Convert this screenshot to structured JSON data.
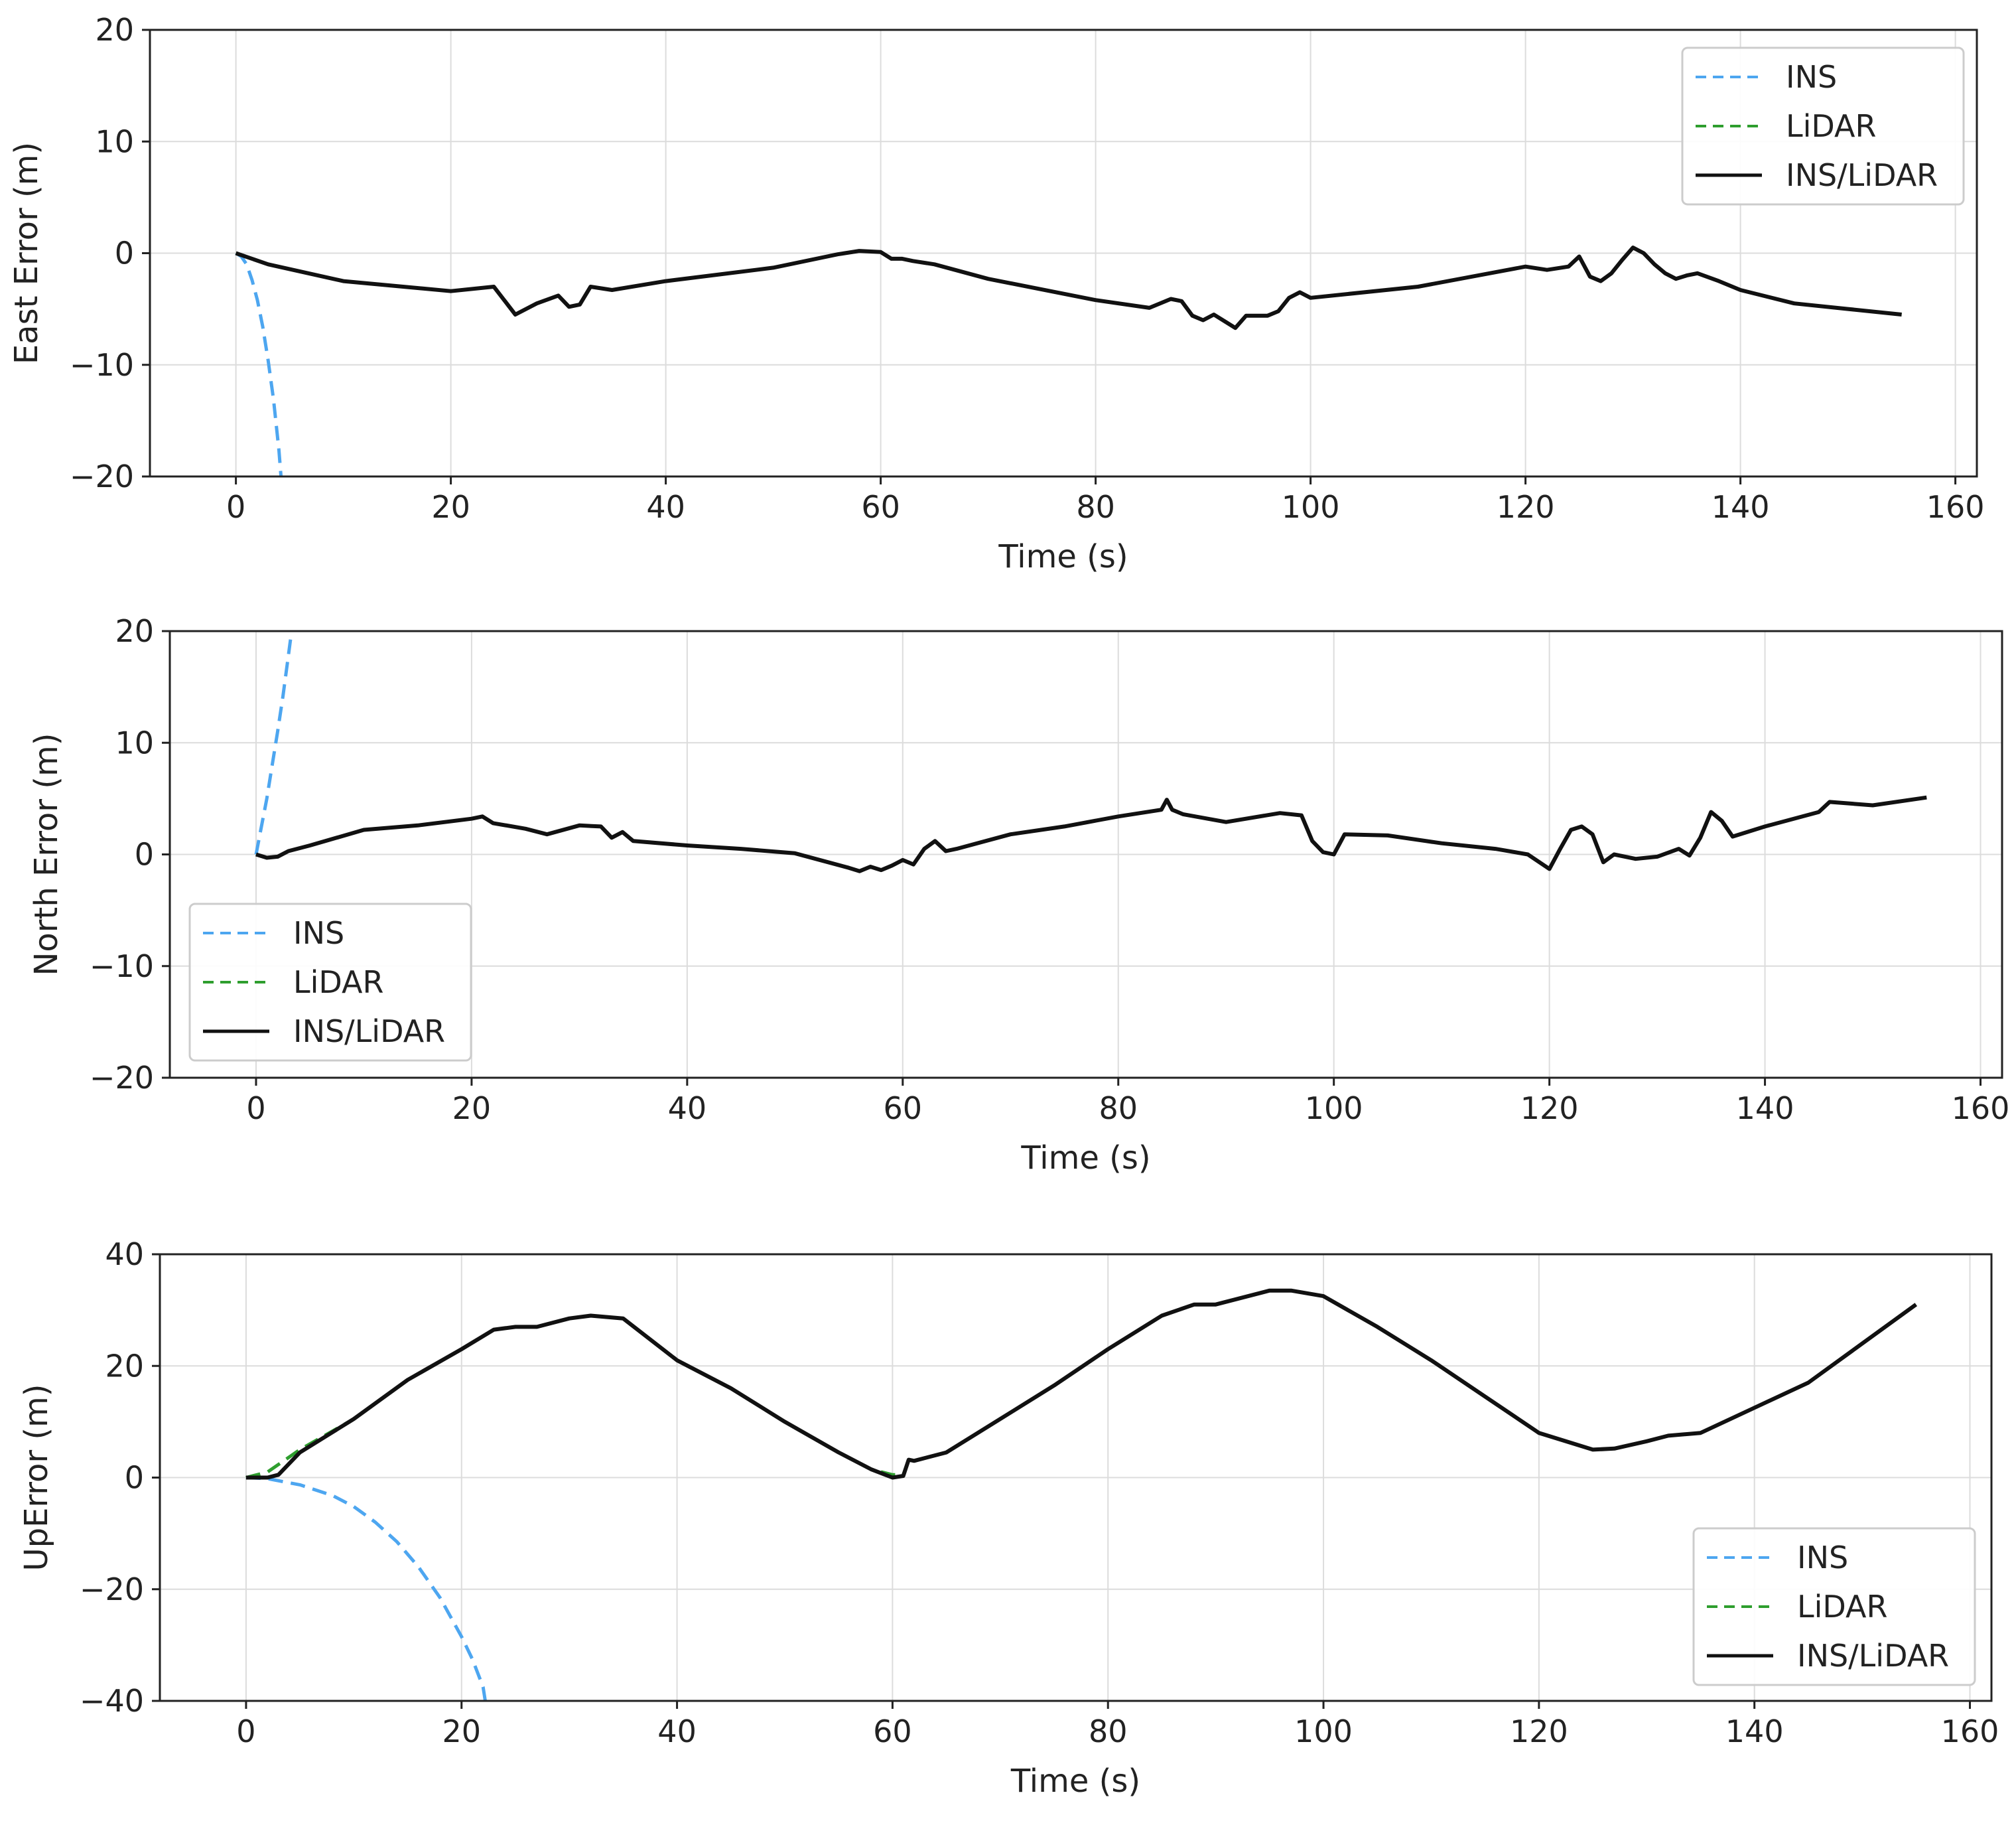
{
  "chart_data": [
    {
      "type": "line",
      "title": "",
      "xlabel": "Time (s)",
      "ylabel": "East Error (m)",
      "xlim": [
        -8,
        162
      ],
      "ylim": [
        -20,
        20
      ],
      "xticks": [
        0,
        20,
        40,
        60,
        80,
        100,
        120,
        140,
        160
      ],
      "yticks": [
        -20,
        -10,
        0,
        10,
        20
      ],
      "xtick_labels": [
        "0",
        "20",
        "40",
        "60",
        "80",
        "100",
        "120",
        "140",
        "160"
      ],
      "ytick_labels": [
        "−20",
        "−10",
        "0",
        "10",
        "20"
      ],
      "grid": true,
      "legend_position": "top-right",
      "series": [
        {
          "name": "INS",
          "color": "#4da6f0",
          "style": "dashed",
          "x": [
            0,
            0.5,
            1,
            1.5,
            2,
            2.5,
            3,
            3.5,
            4,
            4.2
          ],
          "y": [
            0,
            -0.3,
            -1.0,
            -2.4,
            -4.2,
            -6.6,
            -9.6,
            -13.1,
            -17.6,
            -20
          ]
        },
        {
          "name": "LiDAR",
          "color": "#2e9e2e",
          "style": "dashed",
          "x": [
            0,
            3,
            10,
            20,
            24,
            26,
            28,
            30,
            31,
            32,
            33,
            35,
            40,
            50,
            56,
            58,
            60,
            61,
            62,
            63,
            65,
            70,
            80,
            85,
            87,
            88,
            89,
            90,
            91,
            92,
            93,
            94,
            96,
            97,
            98,
            99,
            100,
            110,
            120,
            122,
            124,
            125,
            126,
            127,
            128,
            129,
            130,
            131,
            132,
            133,
            134,
            135,
            136,
            138,
            140,
            145,
            150,
            155
          ],
          "y": [
            0,
            -1.0,
            -2.5,
            -3.4,
            -3.0,
            -5.5,
            -4.5,
            -3.8,
            -4.8,
            -4.6,
            -3.0,
            -3.3,
            -2.5,
            -1.3,
            -0.1,
            0.2,
            0.1,
            -0.5,
            -0.5,
            -0.7,
            -1.0,
            -2.3,
            -4.2,
            -4.9,
            -4.1,
            -4.3,
            -5.6,
            -6.0,
            -5.5,
            -6.1,
            -6.7,
            -5.6,
            -5.6,
            -5.2,
            -4.0,
            -3.5,
            -4.0,
            -3.0,
            -1.2,
            -1.5,
            -1.2,
            -0.3,
            -2.1,
            -2.5,
            -1.8,
            -0.6,
            0.5,
            0.0,
            -1.0,
            -1.8,
            -2.3,
            -2.0,
            -1.8,
            -2.5,
            -3.3,
            -4.5,
            -5.0,
            -5.5
          ]
        },
        {
          "name": "INS/LiDAR",
          "color": "#111111",
          "style": "solid",
          "x": [
            0,
            3,
            10,
            20,
            24,
            26,
            28,
            30,
            31,
            32,
            33,
            35,
            40,
            50,
            56,
            58,
            60,
            61,
            62,
            63,
            65,
            70,
            80,
            85,
            87,
            88,
            89,
            90,
            91,
            92,
            93,
            94,
            96,
            97,
            98,
            99,
            100,
            110,
            120,
            122,
            124,
            125,
            126,
            127,
            128,
            129,
            130,
            131,
            132,
            133,
            134,
            135,
            136,
            138,
            140,
            145,
            150,
            155
          ],
          "y": [
            0,
            -1.0,
            -2.5,
            -3.4,
            -3.0,
            -5.5,
            -4.5,
            -3.8,
            -4.8,
            -4.6,
            -3.0,
            -3.3,
            -2.5,
            -1.3,
            -0.1,
            0.2,
            0.1,
            -0.5,
            -0.5,
            -0.7,
            -1.0,
            -2.3,
            -4.2,
            -4.9,
            -4.1,
            -4.3,
            -5.6,
            -6.0,
            -5.5,
            -6.1,
            -6.7,
            -5.6,
            -5.6,
            -5.2,
            -4.0,
            -3.5,
            -4.0,
            -3.0,
            -1.2,
            -1.5,
            -1.2,
            -0.3,
            -2.1,
            -2.5,
            -1.8,
            -0.6,
            0.5,
            0.0,
            -1.0,
            -1.8,
            -2.3,
            -2.0,
            -1.8,
            -2.5,
            -3.3,
            -4.5,
            -5.0,
            -5.5
          ]
        }
      ]
    },
    {
      "type": "line",
      "title": "",
      "xlabel": "Time (s)",
      "ylabel": "North Error (m)",
      "xlim": [
        -8,
        162
      ],
      "ylim": [
        -20,
        20
      ],
      "xticks": [
        0,
        20,
        40,
        60,
        80,
        100,
        120,
        140,
        160
      ],
      "yticks": [
        -20,
        -10,
        0,
        10,
        20
      ],
      "xtick_labels": [
        "0",
        "20",
        "40",
        "60",
        "80",
        "100",
        "120",
        "140",
        "160"
      ],
      "ytick_labels": [
        "−20",
        "−10",
        "0",
        "10",
        "20"
      ],
      "grid": true,
      "legend_position": "lower-left",
      "series": [
        {
          "name": "INS",
          "color": "#4da6f0",
          "style": "dashed",
          "x": [
            0,
            0.5,
            1,
            1.5,
            2,
            2.5,
            3,
            3.3
          ],
          "y": [
            0,
            2.5,
            5.0,
            8.0,
            11.0,
            14.2,
            17.8,
            20
          ]
        },
        {
          "name": "LiDAR",
          "color": "#2e9e2e",
          "style": "dashed",
          "x": [
            0,
            1,
            2,
            3,
            5,
            10,
            15,
            20,
            21,
            22,
            25,
            27,
            30,
            32,
            33,
            34,
            35,
            40,
            45,
            50,
            55,
            56,
            57,
            58,
            59,
            60,
            61,
            62,
            63,
            64,
            65,
            70,
            75,
            80,
            84,
            84.5,
            85,
            86,
            90,
            95,
            97,
            98,
            99,
            100,
            101,
            105,
            110,
            115,
            118,
            120,
            121,
            122,
            123,
            124,
            125,
            126,
            128,
            130,
            132,
            133,
            134,
            135,
            136,
            137,
            140,
            145,
            146,
            150,
            155
          ],
          "y": [
            0,
            -0.3,
            -0.2,
            0.3,
            0.8,
            2.2,
            2.6,
            3.2,
            3.4,
            2.8,
            2.3,
            1.8,
            2.6,
            2.5,
            1.5,
            2.0,
            1.2,
            0.8,
            0.5,
            0.1,
            -1.2,
            -1.5,
            -1.1,
            -1.4,
            -1.0,
            -0.5,
            -0.9,
            0.5,
            1.2,
            0.3,
            0.5,
            1.8,
            2.5,
            3.4,
            4.0,
            4.9,
            4.0,
            3.6,
            2.9,
            3.7,
            3.5,
            1.2,
            0.2,
            0.0,
            1.8,
            1.7,
            1.0,
            0.5,
            0.0,
            -1.3,
            0.5,
            2.2,
            2.5,
            1.8,
            -0.7,
            0.0,
            -0.4,
            -0.2,
            0.5,
            -0.1,
            1.5,
            3.8,
            3.0,
            1.6,
            2.5,
            3.8,
            4.7,
            4.4,
            5.1
          ]
        },
        {
          "name": "INS/LiDAR",
          "color": "#111111",
          "style": "solid",
          "x": [
            0,
            1,
            2,
            3,
            5,
            10,
            15,
            20,
            21,
            22,
            25,
            27,
            30,
            32,
            33,
            34,
            35,
            40,
            45,
            50,
            55,
            56,
            57,
            58,
            59,
            60,
            61,
            62,
            63,
            64,
            65,
            70,
            75,
            80,
            84,
            84.5,
            85,
            86,
            90,
            95,
            97,
            98,
            99,
            100,
            101,
            105,
            110,
            115,
            118,
            120,
            121,
            122,
            123,
            124,
            125,
            126,
            128,
            130,
            132,
            133,
            134,
            135,
            136,
            137,
            140,
            145,
            146,
            150,
            155
          ],
          "y": [
            0,
            -0.3,
            -0.2,
            0.3,
            0.8,
            2.2,
            2.6,
            3.2,
            3.4,
            2.8,
            2.3,
            1.8,
            2.6,
            2.5,
            1.5,
            2.0,
            1.2,
            0.8,
            0.5,
            0.1,
            -1.2,
            -1.5,
            -1.1,
            -1.4,
            -1.0,
            -0.5,
            -0.9,
            0.5,
            1.2,
            0.3,
            0.5,
            1.8,
            2.5,
            3.4,
            4.0,
            4.9,
            4.0,
            3.6,
            2.9,
            3.7,
            3.5,
            1.2,
            0.2,
            0.0,
            1.8,
            1.7,
            1.0,
            0.5,
            0.0,
            -1.3,
            0.5,
            2.2,
            2.5,
            1.8,
            -0.7,
            0.0,
            -0.4,
            -0.2,
            0.5,
            -0.1,
            1.5,
            3.8,
            3.0,
            1.6,
            2.5,
            3.8,
            4.7,
            4.4,
            5.1
          ]
        }
      ]
    },
    {
      "type": "line",
      "title": "",
      "xlabel": "Time (s)",
      "ylabel": "UpError (m)",
      "xlim": [
        -8,
        162
      ],
      "ylim": [
        -40,
        40
      ],
      "xticks": [
        0,
        20,
        40,
        60,
        80,
        100,
        120,
        140,
        160
      ],
      "yticks": [
        -40,
        -20,
        0,
        20,
        40
      ],
      "xtick_labels": [
        "0",
        "20",
        "40",
        "60",
        "80",
        "100",
        "120",
        "140",
        "160"
      ],
      "ytick_labels": [
        "−40",
        "−20",
        "0",
        "20",
        "40"
      ],
      "grid": true,
      "legend_position": "lower-right",
      "series": [
        {
          "name": "INS",
          "color": "#4da6f0",
          "style": "dashed",
          "x": [
            0,
            2,
            5,
            8,
            10,
            12,
            14,
            16,
            18,
            20,
            21,
            22,
            22.2
          ],
          "y": [
            0,
            -0.2,
            -1.3,
            -3.2,
            -5.2,
            -8.0,
            -11.5,
            -16.0,
            -21.5,
            -28.5,
            -32.5,
            -37.5,
            -40
          ]
        },
        {
          "name": "LiDAR",
          "color": "#2e9e2e",
          "style": "dashed",
          "x": [
            0,
            2,
            5,
            10,
            15,
            20,
            23,
            25,
            27,
            30,
            32,
            35,
            40,
            45,
            50,
            55,
            58,
            60,
            61,
            61.5,
            62,
            65,
            70,
            75,
            80,
            85,
            88,
            90,
            95,
            97,
            100,
            105,
            110,
            115,
            120,
            125,
            127,
            130,
            132,
            135,
            140,
            145,
            150,
            155
          ],
          "y": [
            0,
            1.0,
            5.0,
            10.5,
            17.5,
            23.0,
            26.5,
            27.0,
            27.0,
            28.5,
            29.0,
            28.5,
            21.0,
            16.0,
            10.0,
            4.5,
            1.5,
            0.5,
            0.5,
            3.2,
            3.0,
            4.5,
            10.5,
            16.5,
            23.0,
            29.0,
            31.0,
            31.0,
            33.5,
            33.5,
            32.5,
            27.0,
            21.0,
            14.5,
            8.0,
            5.0,
            5.2,
            6.5,
            7.5,
            8.0,
            12.5,
            17.0,
            24.0,
            31.0
          ]
        },
        {
          "name": "INS/LiDAR",
          "color": "#111111",
          "style": "solid",
          "x": [
            0,
            2,
            3,
            5,
            10,
            15,
            20,
            23,
            25,
            27,
            30,
            32,
            35,
            40,
            45,
            50,
            55,
            58,
            60,
            61,
            61.5,
            62,
            65,
            70,
            75,
            80,
            85,
            88,
            90,
            95,
            97,
            100,
            105,
            110,
            115,
            120,
            125,
            127,
            130,
            132,
            135,
            140,
            145,
            150,
            155
          ],
          "y": [
            0,
            0.0,
            0.5,
            4.5,
            10.5,
            17.5,
            23.0,
            26.5,
            27.0,
            27.0,
            28.5,
            29.0,
            28.5,
            21.0,
            16.0,
            10.0,
            4.5,
            1.5,
            0.0,
            0.3,
            3.2,
            3.0,
            4.5,
            10.5,
            16.5,
            23.0,
            29.0,
            31.0,
            31.0,
            33.5,
            33.5,
            32.5,
            27.0,
            21.0,
            14.5,
            8.0,
            5.0,
            5.2,
            6.5,
            7.5,
            8.0,
            12.5,
            17.0,
            24.0,
            31.0
          ]
        }
      ]
    }
  ]
}
